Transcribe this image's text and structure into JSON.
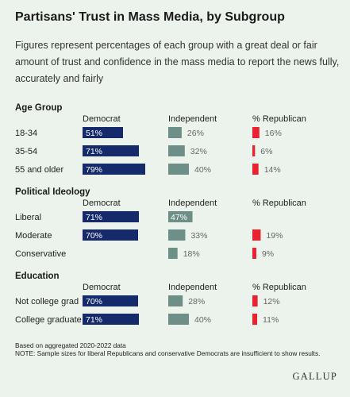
{
  "title": "Partisans' Trust in Mass Media, by Subgroup",
  "subtitle": "Figures represent percentages of each group with a great deal or fair amount of trust and confidence in the mass media to report the news fully, accurately and fairly",
  "footnote_line1": "Based on aggregated 2020-2022 data",
  "footnote_line2": "NOTE: Sample sizes for liberal Republicans and conservative Democrats are insufficient to show results.",
  "brand": "GALLUP",
  "colors": {
    "democrat": "#142a6b",
    "independent": "#6e8f87",
    "republican": "#e8232f",
    "background": "#ecf3ec"
  },
  "chart_data": {
    "type": "bar",
    "unit": "%",
    "column_headers": [
      "Democrat",
      "Independent",
      "% Republican"
    ],
    "groups": [
      {
        "name": "Age Group",
        "rows": [
          {
            "label": "18-34",
            "democrat": 51,
            "independent": 26,
            "republican": 16
          },
          {
            "label": "35-54",
            "democrat": 71,
            "independent": 32,
            "republican": 6
          },
          {
            "label": "55 and older",
            "democrat": 79,
            "independent": 40,
            "republican": 14
          }
        ]
      },
      {
        "name": "Political Ideology",
        "rows": [
          {
            "label": "Liberal",
            "democrat": 71,
            "independent": 47,
            "republican": null
          },
          {
            "label": "Moderate",
            "democrat": 70,
            "independent": 33,
            "republican": 19
          },
          {
            "label": "Conservative",
            "democrat": null,
            "independent": 18,
            "republican": 9
          }
        ]
      },
      {
        "name": "Education",
        "rows": [
          {
            "label": "Not college grad",
            "democrat": 70,
            "independent": 28,
            "republican": 12
          },
          {
            "label": "College graduate",
            "democrat": 71,
            "independent": 40,
            "republican": 11
          }
        ]
      }
    ]
  }
}
